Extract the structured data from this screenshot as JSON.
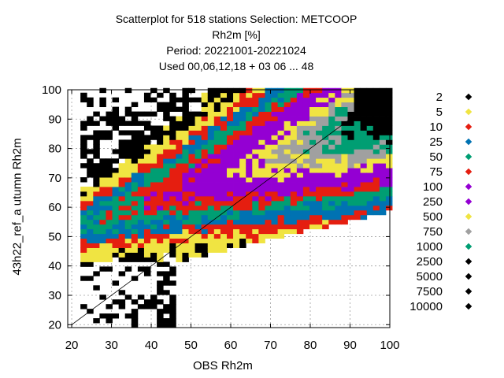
{
  "chart_data": {
    "type": "scatter",
    "title_lines": [
      "Scatterplot for  518 stations Selection: METCOOP",
      "Rh2m [%]",
      "Period: 20221001-20221024",
      "Used  00,06,12,18  + 03 06 ... 48"
    ],
    "xlabel": "OBS Rh2m",
    "ylabel": "43h22_ref_a utumn Rh2m",
    "xlim": [
      19,
      100
    ],
    "ylim": [
      19,
      100
    ],
    "xticks": [
      20,
      30,
      40,
      50,
      60,
      70,
      80,
      90,
      100
    ],
    "yticks": [
      20,
      30,
      40,
      50,
      60,
      70,
      80,
      90,
      100
    ],
    "grid": true,
    "diagonal": true,
    "legend_placement": "right",
    "density_legend": [
      {
        "label": "2",
        "color": "#000000"
      },
      {
        "label": "5",
        "color": "#f0e442"
      },
      {
        "label": "10",
        "color": "#e51e10"
      },
      {
        "label": "25",
        "color": "#0072b2"
      },
      {
        "label": "50",
        "color": "#009e73"
      },
      {
        "label": "75",
        "color": "#e51e10"
      },
      {
        "label": "100",
        "color": "#9400d3"
      },
      {
        "label": "250",
        "color": "#9400d3"
      },
      {
        "label": "500",
        "color": "#f0e442"
      },
      {
        "label": "750",
        "color": "#a0a0a0"
      },
      {
        "label": "1000",
        "color": "#009e73"
      },
      {
        "label": "2500",
        "color": "#000000"
      },
      {
        "label": "5000",
        "color": "#000000"
      },
      {
        "label": "7500",
        "color": "#000000"
      },
      {
        "label": "10000",
        "color": "#000000"
      }
    ]
  }
}
